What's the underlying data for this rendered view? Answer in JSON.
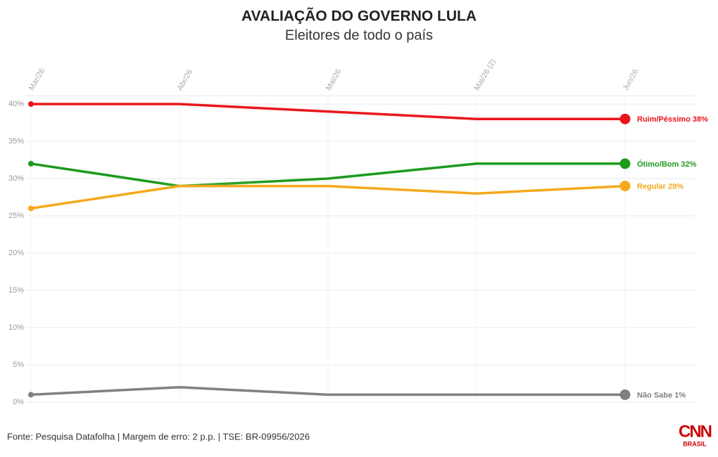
{
  "chart_data": {
    "type": "line",
    "title": "AVALIAÇÃO DO GOVERNO LULA",
    "subtitle": "Eleitores de todo o país",
    "source": "Fonte: Pesquisa Datafolha | Margem de erro: 2 p.p. | TSE: BR-09956/2026",
    "logo": {
      "top": "CNN",
      "bottom": "BRASIL"
    },
    "categories": [
      "Mar/26",
      "Abr/26",
      "Mai/26",
      "Mai/26 (2)",
      "Jun/26"
    ],
    "ylim": [
      0,
      40
    ],
    "yticks": [
      {
        "value": 0,
        "label": "0%"
      },
      {
        "value": 5,
        "label": "5%"
      },
      {
        "value": 10,
        "label": "10%"
      },
      {
        "value": 15,
        "label": "15%"
      },
      {
        "value": 20,
        "label": "20%"
      },
      {
        "value": 25,
        "label": "25%"
      },
      {
        "value": 30,
        "label": "30%"
      },
      {
        "value": 35,
        "label": "35%"
      },
      {
        "value": 40,
        "label": "40%"
      }
    ],
    "grid": true,
    "series": [
      {
        "name": "Ruim/Péssimo",
        "color": "#e8141c",
        "values": [
          40,
          40,
          39,
          38,
          38
        ],
        "value_labels": [
          null,
          null,
          null,
          null,
          "38%"
        ]
      },
      {
        "name": "Ótimo/Bom",
        "color": "#1f9a1f",
        "values": [
          32,
          29,
          30,
          32,
          32
        ],
        "value_labels": [
          null,
          null,
          null,
          null,
          "32%"
        ]
      },
      {
        "name": "Regular",
        "color": "#f5a81c",
        "values": [
          26,
          29,
          29,
          28,
          29
        ],
        "value_labels": [
          null,
          null,
          null,
          null,
          "29%"
        ]
      },
      {
        "name": "Não Sabe",
        "color": "#808080",
        "values": [
          1,
          2,
          1,
          1,
          1
        ],
        "value_labels": [
          null,
          null,
          null,
          null,
          "1%"
        ]
      }
    ]
  }
}
